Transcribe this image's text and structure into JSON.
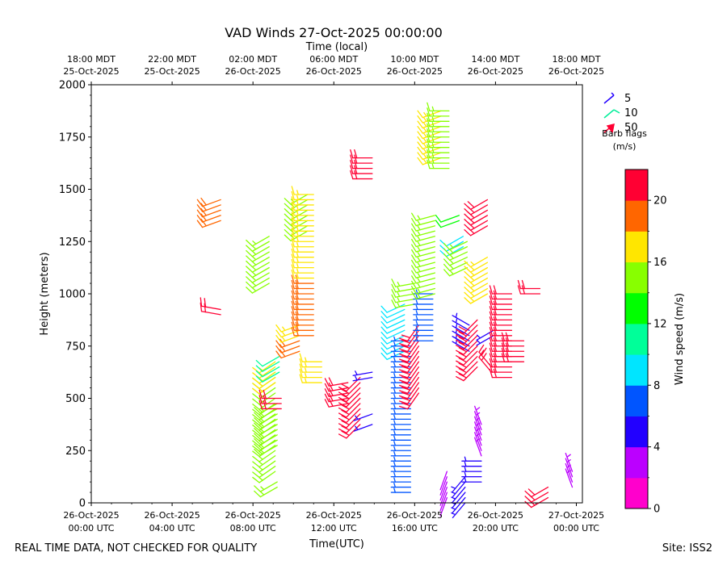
{
  "footer": {
    "disclaimer": "REAL TIME DATA, NOT CHECKED FOR QUALITY",
    "site": "Site: ISS2"
  },
  "chart_data": {
    "type": "scatter",
    "title": "VAD Winds 27-Oct-2025 00:00:00",
    "top_axis_label": "Time (local)",
    "xlabel": "Time(UTC)",
    "ylabel": "Height (meters)",
    "colorbar_label": "Wind speed (m/s)",
    "x_unit": "hours since 26-Oct-2025 00:00 UTC",
    "xlim": [
      0,
      24.3
    ],
    "ylim": [
      0,
      2000
    ],
    "bottom_ticks": [
      {
        "x": 0,
        "line1": "26-Oct-2025",
        "line2": "00:00 UTC"
      },
      {
        "x": 4,
        "line1": "26-Oct-2025",
        "line2": "04:00 UTC"
      },
      {
        "x": 8,
        "line1": "26-Oct-2025",
        "line2": "08:00 UTC"
      },
      {
        "x": 12,
        "line1": "26-Oct-2025",
        "line2": "12:00 UTC"
      },
      {
        "x": 16,
        "line1": "26-Oct-2025",
        "line2": "16:00 UTC"
      },
      {
        "x": 20,
        "line1": "26-Oct-2025",
        "line2": "20:00 UTC"
      },
      {
        "x": 24,
        "line1": "27-Oct-2025",
        "line2": "00:00 UTC"
      }
    ],
    "top_ticks": [
      {
        "x": 0,
        "line1": "18:00 MDT",
        "line2": "25-Oct-2025"
      },
      {
        "x": 4,
        "line1": "22:00 MDT",
        "line2": "25-Oct-2025"
      },
      {
        "x": 8,
        "line1": "02:00 MDT",
        "line2": "26-Oct-2025"
      },
      {
        "x": 12,
        "line1": "06:00 MDT",
        "line2": "26-Oct-2025"
      },
      {
        "x": 16,
        "line1": "10:00 MDT",
        "line2": "26-Oct-2025"
      },
      {
        "x": 20,
        "line1": "14:00 MDT",
        "line2": "26-Oct-2025"
      },
      {
        "x": 24,
        "line1": "18:00 MDT",
        "line2": "26-Oct-2025"
      }
    ],
    "y_ticks": [
      0,
      250,
      500,
      750,
      1000,
      1250,
      1500,
      1750,
      2000
    ],
    "legend": {
      "items": [
        {
          "label": "5",
          "color": "#2200ff"
        },
        {
          "label": "10",
          "color": "#00ee99"
        },
        {
          "label": "50",
          "color": "#ff0033"
        }
      ],
      "title_line1": "Barb flags",
      "title_line2": "(m/s)"
    },
    "colorbar": {
      "min": 0,
      "max": 22,
      "ticks": [
        0,
        4,
        8,
        12,
        16,
        20
      ],
      "colors": [
        "#ff00cc",
        "#bb00ff",
        "#2200ff",
        "#0055ff",
        "#00e5ff",
        "#00ff99",
        "#00ff00",
        "#88ff00",
        "#ffe600",
        "#ff6600",
        "#ff0033"
      ]
    },
    "segments": [
      {
        "t": 6.4,
        "z0": 1350,
        "z1": 1450,
        "dz": 25,
        "s": 18,
        "dir": 250
      },
      {
        "t": 6.4,
        "z0": 900,
        "z1": 925,
        "dz": 25,
        "s": 21,
        "dir": 280
      },
      {
        "t": 8.8,
        "z0": 1050,
        "z1": 1275,
        "dz": 25,
        "s": 15,
        "dir": 240
      },
      {
        "t": 9.2,
        "z0": 75,
        "z1": 100,
        "dz": 25,
        "s": 14,
        "dir": 240
      },
      {
        "t": 9.1,
        "z0": 150,
        "z1": 625,
        "dz": 25,
        "s": 14,
        "dir": 235
      },
      {
        "t": 9.2,
        "z0": 275,
        "z1": 475,
        "dz": 25,
        "s": 15,
        "dir": 240
      },
      {
        "t": 9.1,
        "z0": 575,
        "z1": 675,
        "dz": 25,
        "s": 16,
        "dir": 235
      },
      {
        "t": 9.4,
        "z0": 450,
        "z1": 500,
        "dz": 25,
        "s": 21,
        "dir": 270
      },
      {
        "t": 9.3,
        "z0": 625,
        "z1": 700,
        "dz": 25,
        "s": 10,
        "dir": 240
      },
      {
        "t": 10.3,
        "z0": 725,
        "z1": 775,
        "dz": 25,
        "s": 18,
        "dir": 250
      },
      {
        "t": 10.3,
        "z0": 800,
        "z1": 850,
        "dz": 25,
        "s": 16,
        "dir": 250
      },
      {
        "t": 10.7,
        "z0": 1300,
        "z1": 1475,
        "dz": 25,
        "s": 14,
        "dir": 240
      },
      {
        "t": 11.0,
        "z0": 800,
        "z1": 1050,
        "dz": 25,
        "s": 18,
        "dir": 270
      },
      {
        "t": 11.0,
        "z0": 1075,
        "z1": 1475,
        "dz": 25,
        "s": 16,
        "dir": 270
      },
      {
        "t": 11.4,
        "z0": 575,
        "z1": 675,
        "dz": 25,
        "s": 17,
        "dir": 270
      },
      {
        "t": 12.7,
        "z0": 475,
        "z1": 575,
        "dz": 25,
        "s": 21,
        "dir": 260
      },
      {
        "t": 13.3,
        "z0": 375,
        "z1": 600,
        "dz": 25,
        "s": 22,
        "dir": 225
      },
      {
        "t": 13.9,
        "z0": 375,
        "z1": 425,
        "dz": 50,
        "s": 5,
        "dir": 250
      },
      {
        "t": 13.9,
        "z0": 600,
        "z1": 625,
        "dz": 25,
        "s": 4,
        "dir": 260
      },
      {
        "t": 13.9,
        "z0": 1550,
        "z1": 1650,
        "dz": 25,
        "s": 21,
        "dir": 270
      },
      {
        "t": 15.5,
        "z0": 725,
        "z1": 950,
        "dz": 25,
        "s": 9,
        "dir": 245
      },
      {
        "t": 15.8,
        "z0": 50,
        "z1": 775,
        "dz": 25,
        "s": 7,
        "dir": 270
      },
      {
        "t": 16.2,
        "z0": 525,
        "z1": 850,
        "dz": 25,
        "s": 21,
        "dir": 215
      },
      {
        "t": 16.0,
        "z0": 950,
        "z1": 1050,
        "dz": 25,
        "s": 14,
        "dir": 260
      },
      {
        "t": 16.9,
        "z0": 775,
        "z1": 1000,
        "dz": 25,
        "s": 6,
        "dir": 270
      },
      {
        "t": 17.0,
        "z0": 1000,
        "z1": 1375,
        "dz": 25,
        "s": 14,
        "dir": 255
      },
      {
        "t": 17.3,
        "z0": 1650,
        "z1": 1875,
        "dz": 25,
        "s": 16,
        "dir": 250
      },
      {
        "t": 17.7,
        "z0": 1600,
        "z1": 1875,
        "dz": 25,
        "s": 14,
        "dir": 270
      },
      {
        "t": 18.2,
        "z0": 1350,
        "z1": 1375,
        "dz": 25,
        "s": 12,
        "dir": 250
      },
      {
        "t": 18.4,
        "z0": 1225,
        "z1": 1275,
        "dz": 25,
        "s": 9,
        "dir": 240
      },
      {
        "t": 18.6,
        "z0": 1125,
        "z1": 1250,
        "dz": 25,
        "s": 14,
        "dir": 245
      },
      {
        "t": 19.6,
        "z0": 1000,
        "z1": 1175,
        "dz": 25,
        "s": 16,
        "dir": 240
      },
      {
        "t": 19.6,
        "z0": 1325,
        "z1": 1450,
        "dz": 25,
        "s": 20,
        "dir": 240
      },
      {
        "t": 18.7,
        "z0": 725,
        "z1": 850,
        "dz": 25,
        "s": 5,
        "dir": 300
      },
      {
        "t": 19.1,
        "z0": 650,
        "z1": 875,
        "dz": 25,
        "s": 21,
        "dir": 225
      },
      {
        "t": 19.9,
        "z0": 800,
        "z1": 825,
        "dz": 25,
        "s": 4,
        "dir": 240
      },
      {
        "t": 19.8,
        "z0": 625,
        "z1": 650,
        "dz": 25,
        "s": 20,
        "dir": 320
      },
      {
        "t": 20.8,
        "z0": 600,
        "z1": 1000,
        "dz": 25,
        "s": 20,
        "dir": 270
      },
      {
        "t": 21.4,
        "z0": 675,
        "z1": 775,
        "dz": 25,
        "s": 21,
        "dir": 270
      },
      {
        "t": 22.2,
        "z0": 1000,
        "z1": 1025,
        "dz": 25,
        "s": 20,
        "dir": 270
      },
      {
        "t": 22.6,
        "z0": 25,
        "z1": 75,
        "dz": 25,
        "s": 20,
        "dir": 240
      },
      {
        "t": 17.6,
        "z0": 25,
        "z1": 150,
        "dz": 25,
        "s": 2,
        "dir": 200
      },
      {
        "t": 18.5,
        "z0": 0,
        "z1": 125,
        "dz": 25,
        "s": 4,
        "dir": 220
      },
      {
        "t": 19.3,
        "z0": 100,
        "z1": 200,
        "dz": 25,
        "s": 5,
        "dir": 270
      },
      {
        "t": 19.3,
        "z0": 225,
        "z1": 375,
        "dz": 25,
        "s": 3,
        "dir": 340
      },
      {
        "t": 23.8,
        "z0": 75,
        "z1": 150,
        "dz": 25,
        "s": 3,
        "dir": 340
      }
    ]
  }
}
